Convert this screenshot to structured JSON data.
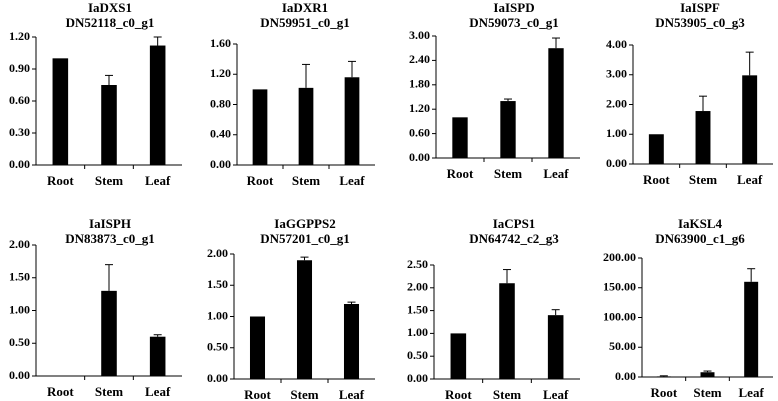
{
  "chart_data": [
    {
      "type": "bar",
      "title": "IaDXS1",
      "subtitle": "DN52118_c0_g1",
      "categories": [
        "Root",
        "Stem",
        "Leaf"
      ],
      "values": [
        1.0,
        0.75,
        1.12
      ],
      "errors": [
        0.0,
        0.09,
        0.08
      ],
      "ylim": [
        0,
        1.2
      ],
      "yticks": [
        "0.00",
        "0.30",
        "0.60",
        "0.90",
        "1.20"
      ],
      "xlabel": "",
      "ylabel": "",
      "grid": false
    },
    {
      "type": "bar",
      "title": "IaDXR1",
      "subtitle": "DN59951_c0_g1",
      "categories": [
        "Root",
        "Stem",
        "Leaf"
      ],
      "values": [
        1.0,
        1.02,
        1.16
      ],
      "errors": [
        0.0,
        0.31,
        0.21
      ],
      "ylim": [
        0,
        1.6
      ],
      "yticks": [
        "0.00",
        "0.40",
        "0.80",
        "1.20",
        "1.60"
      ],
      "xlabel": "",
      "ylabel": "",
      "grid": false
    },
    {
      "type": "bar",
      "title": "IaISPD",
      "subtitle": "DN59073_c0_g1",
      "categories": [
        "Root",
        "Stem",
        "Leaf"
      ],
      "values": [
        1.0,
        1.4,
        2.7
      ],
      "errors": [
        0.0,
        0.05,
        0.25
      ],
      "ylim": [
        0,
        3.0
      ],
      "yticks": [
        "0.00",
        "0.60",
        "1.20",
        "1.80",
        "2.40",
        "3.00"
      ],
      "xlabel": "",
      "ylabel": "",
      "grid": false
    },
    {
      "type": "bar",
      "title": "IaISPF",
      "subtitle": "DN53905_c0_g3",
      "categories": [
        "Root",
        "Stem",
        "Leaf"
      ],
      "values": [
        1.0,
        1.78,
        2.98
      ],
      "errors": [
        0.0,
        0.5,
        0.78
      ],
      "ylim": [
        0,
        4.0
      ],
      "yticks": [
        "0.00",
        "1.00",
        "2.00",
        "3.00",
        "4.00"
      ],
      "xlabel": "",
      "ylabel": "",
      "grid": false
    },
    {
      "type": "bar",
      "title": "IaISPH",
      "subtitle": "DN83873_c0_g1",
      "categories": [
        "Root",
        "Stem",
        "Leaf"
      ],
      "values": [
        0.0,
        1.3,
        0.6
      ],
      "errors": [
        0.0,
        0.4,
        0.03
      ],
      "ylim": [
        0,
        2.0
      ],
      "yticks": [
        "0.00",
        "0.50",
        "1.00",
        "1.50",
        "2.00"
      ],
      "xlabel": "",
      "ylabel": "",
      "grid": false
    },
    {
      "type": "bar",
      "title": "IaGGPPS2",
      "subtitle": "DN57201_c0_g1",
      "categories": [
        "Root",
        "Stem",
        "Leaf"
      ],
      "values": [
        1.0,
        1.9,
        1.2
      ],
      "errors": [
        0.0,
        0.05,
        0.03
      ],
      "ylim": [
        0,
        2.0
      ],
      "yticks": [
        "0.00",
        "0.50",
        "1.00",
        "1.50",
        "2.00"
      ],
      "xlabel": "",
      "ylabel": "",
      "grid": false
    },
    {
      "type": "bar",
      "title": "IaCPS1",
      "subtitle": "DN64742_c2_g3",
      "categories": [
        "Root",
        "Stem",
        "Leaf"
      ],
      "values": [
        1.0,
        2.1,
        1.4
      ],
      "errors": [
        0.0,
        0.3,
        0.12
      ],
      "ylim": [
        0,
        2.5
      ],
      "yticks": [
        "0.00",
        "0.50",
        "1.00",
        "1.50",
        "2.00",
        "2.50"
      ],
      "xlabel": "",
      "ylabel": "",
      "grid": false
    },
    {
      "type": "bar",
      "title": "IaKSL4",
      "subtitle": "DN63900_c1_g6",
      "categories": [
        "Root",
        "Stem",
        "Leaf"
      ],
      "values": [
        1.0,
        8.0,
        160.0
      ],
      "errors": [
        1.0,
        2.0,
        22.0
      ],
      "ylim": [
        0,
        200
      ],
      "yticks": [
        "0.00",
        "50.00",
        "100.00",
        "150.00",
        "200.00"
      ],
      "xlabel": "",
      "ylabel": "",
      "grid": false
    }
  ]
}
